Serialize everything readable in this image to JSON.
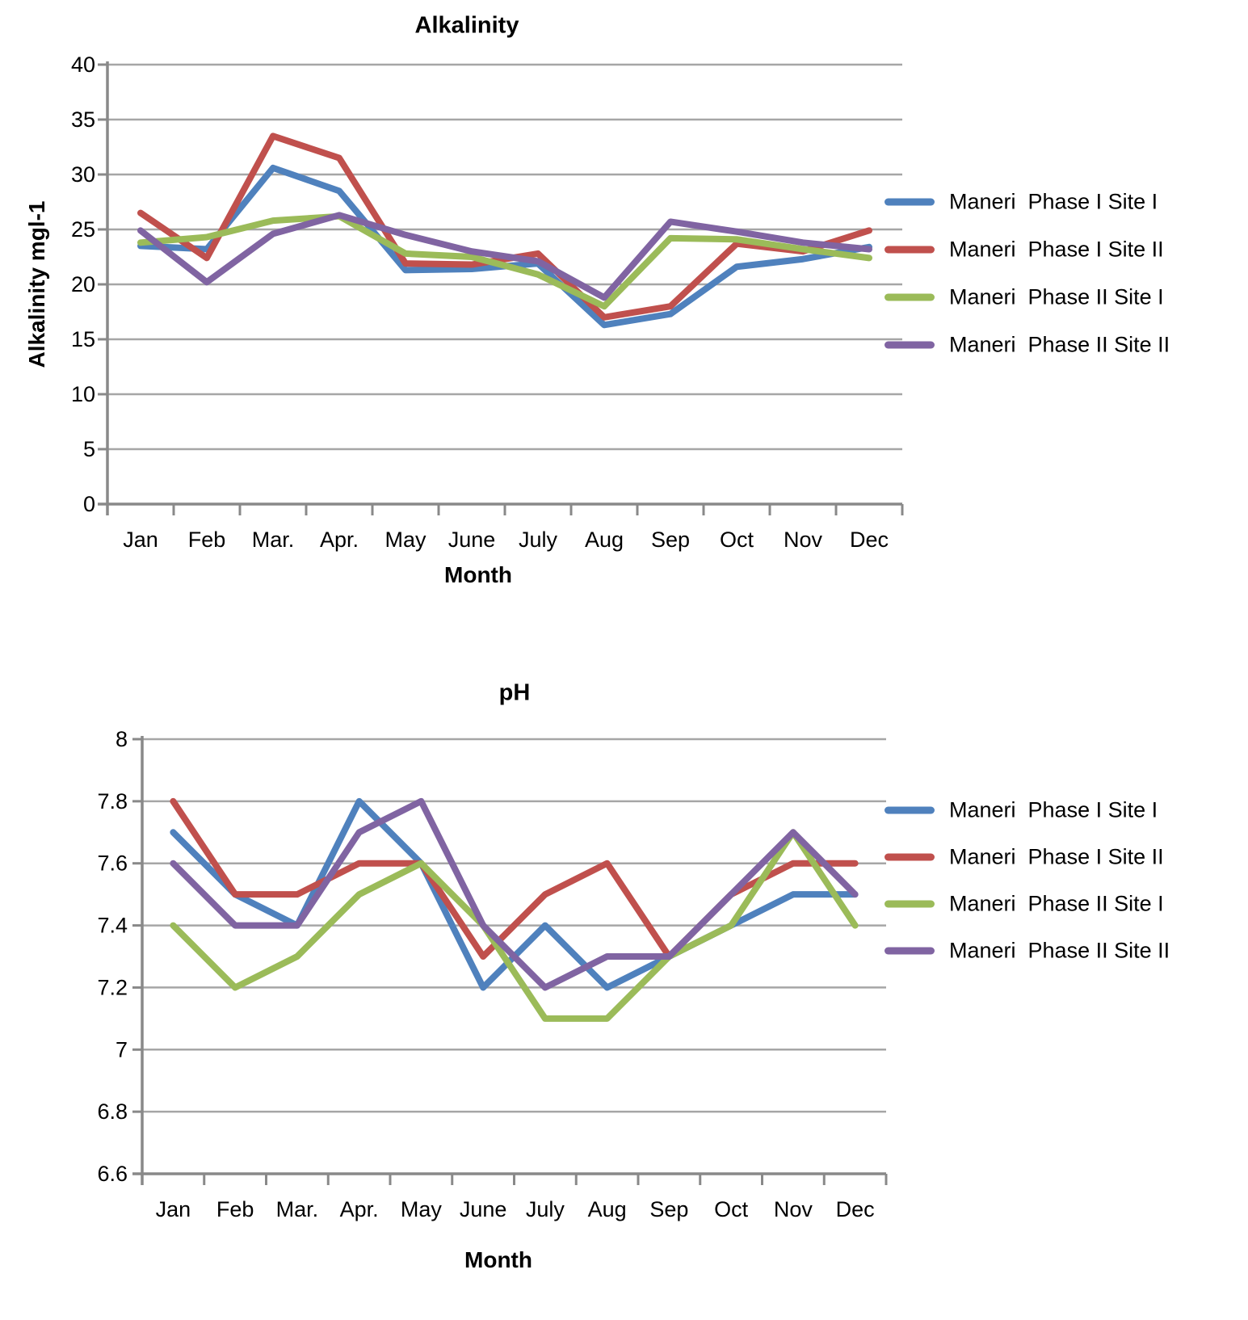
{
  "chart_data": [
    {
      "id": "alkalinity",
      "type": "line",
      "title": "Alkalinity",
      "ylabel": "Alkalinity mgl-1",
      "xlabel": "Month",
      "ylim": [
        0,
        40
      ],
      "ytick_step": 5,
      "ytick_labels": [
        "40",
        "35",
        "30",
        "25",
        "20",
        "15",
        "10",
        "5",
        "0"
      ],
      "categories": [
        "Jan",
        "Feb",
        "Mar.",
        "Apr.",
        "May",
        "June",
        "July",
        "Aug",
        "Sep",
        "Oct",
        "Nov",
        "Dec"
      ],
      "grid": true,
      "legend_position": "right",
      "series": [
        {
          "name": "Maneri  Phase I Site I",
          "color": "#4F81BD",
          "values": [
            23.5,
            23.2,
            30.6,
            28.5,
            21.3,
            21.4,
            21.9,
            16.3,
            17.3,
            21.6,
            22.3,
            23.4
          ]
        },
        {
          "name": "Maneri  Phase I Site II",
          "color": "#C0504D",
          "values": [
            26.5,
            22.4,
            33.5,
            31.5,
            21.9,
            21.8,
            22.8,
            17.0,
            18.0,
            23.7,
            23.0,
            24.9
          ]
        },
        {
          "name": "Maneri  Phase II Site I",
          "color": "#9BBB59",
          "values": [
            23.8,
            24.3,
            25.8,
            26.2,
            22.8,
            22.5,
            20.9,
            18.0,
            24.2,
            24.1,
            23.2,
            22.4
          ]
        },
        {
          "name": "Maneri  Phase II Site II",
          "color": "#8064A2",
          "values": [
            24.9,
            20.2,
            24.6,
            26.3,
            24.5,
            23.0,
            22.1,
            18.8,
            25.7,
            24.8,
            23.8,
            23.2
          ]
        }
      ]
    },
    {
      "id": "ph",
      "type": "line",
      "title": "pH",
      "ylabel": "",
      "xlabel": "Month",
      "ylim": [
        6.6,
        8.0
      ],
      "ytick_step": 0.2,
      "ytick_labels": [
        "8",
        "7.8",
        "7.6",
        "7.4",
        "7.2",
        "7",
        "6.8",
        "6.6"
      ],
      "categories": [
        "Jan",
        "Feb",
        "Mar.",
        "Apr.",
        "May",
        "June",
        "July",
        "Aug",
        "Sep",
        "Oct",
        "Nov",
        "Dec"
      ],
      "grid": true,
      "legend_position": "right",
      "series": [
        {
          "name": "Maneri  Phase I Site I",
          "color": "#4F81BD",
          "values": [
            7.7,
            7.5,
            7.4,
            7.8,
            7.6,
            7.2,
            7.4,
            7.2,
            7.3,
            7.4,
            7.5,
            7.5
          ]
        },
        {
          "name": "Maneri  Phase I Site II",
          "color": "#C0504D",
          "values": [
            7.8,
            7.5,
            7.5,
            7.6,
            7.6,
            7.3,
            7.5,
            7.6,
            7.3,
            7.5,
            7.6,
            7.6
          ]
        },
        {
          "name": "Maneri  Phase II Site I",
          "color": "#9BBB59",
          "values": [
            7.4,
            7.2,
            7.3,
            7.5,
            7.6,
            7.4,
            7.1,
            7.1,
            7.3,
            7.4,
            7.7,
            7.4
          ]
        },
        {
          "name": "Maneri  Phase II Site II",
          "color": "#8064A2",
          "values": [
            7.6,
            7.4,
            7.4,
            7.7,
            7.8,
            7.4,
            7.2,
            7.3,
            7.3,
            7.5,
            7.7,
            7.5
          ]
        }
      ]
    }
  ],
  "styles": {
    "gridline_color": "#A6A6A6",
    "axis_color": "#898989",
    "text_color": "#000000"
  }
}
